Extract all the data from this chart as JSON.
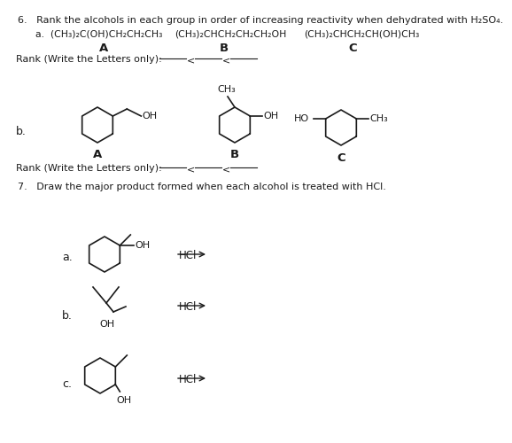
{
  "background": "#ffffff",
  "text_color": "#1a1a1a",
  "q6_title": "6.   Rank the alcohols in each group in order of increasing reactivity when dehydrated with H₂SO₄.",
  "q7_title": "7.   Draw the major product formed when each alcohol is treated with HCl.",
  "part_a_A": "(CH₃)₂C(OH)CH₂CH₂CH₃",
  "part_a_B": "(CH₃)₂CHCH₂CH₂CH₂OH",
  "part_a_C": "(CH₃)₂CHCH₂CH(OH)CH₃"
}
